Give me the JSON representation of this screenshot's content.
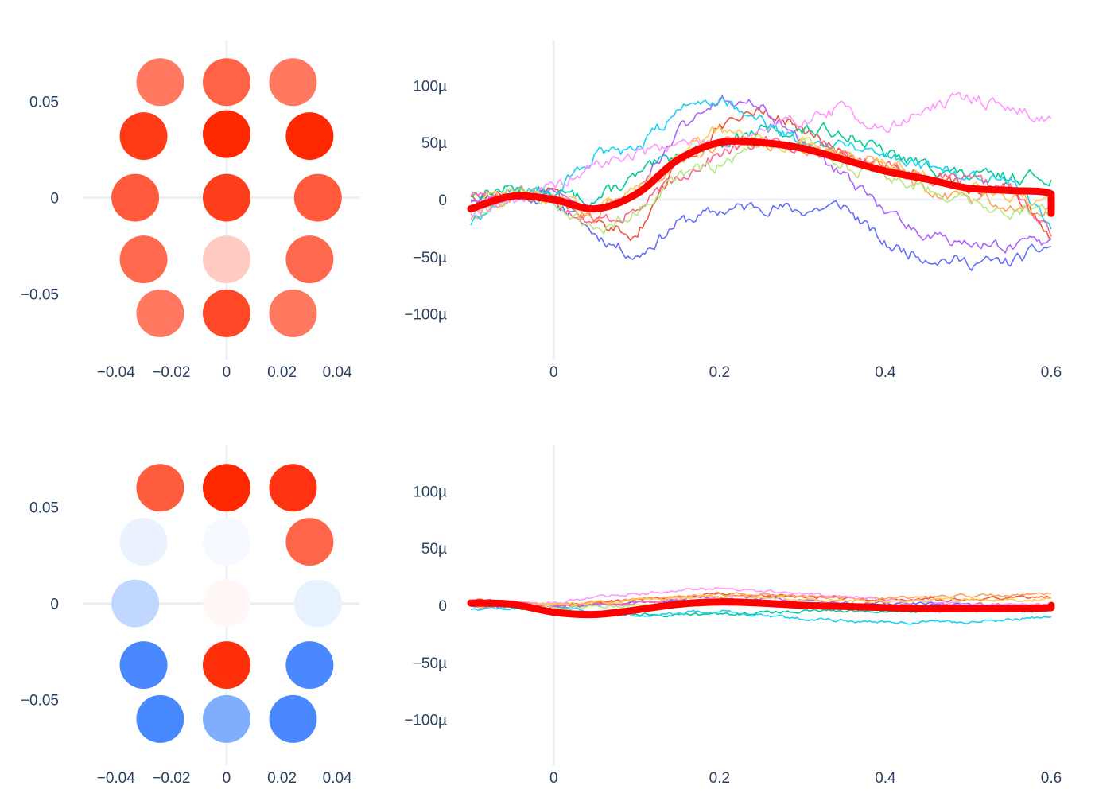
{
  "chart_data": [
    {
      "type": "scatter",
      "panel": "top-left",
      "xlim": [
        -0.052,
        0.048
      ],
      "ylim": [
        -0.084,
        0.082
      ],
      "x_ticks": [
        -0.04,
        -0.02,
        0,
        0.02,
        0.04
      ],
      "x_tick_labels": [
        "−0.04",
        "−0.02",
        "0",
        "0.02",
        "0.04"
      ],
      "y_ticks": [
        0.05,
        0,
        -0.05
      ],
      "y_tick_labels": [
        "0.05",
        "0",
        "−0.05"
      ],
      "grid": "zero lines only",
      "points": [
        {
          "x": -0.024,
          "y": 0.06,
          "color": "#FF785F"
        },
        {
          "x": 0.0,
          "y": 0.06,
          "color": "#FF6245"
        },
        {
          "x": 0.024,
          "y": 0.06,
          "color": "#FF785F"
        },
        {
          "x": -0.03,
          "y": 0.032,
          "color": "#FF3B18"
        },
        {
          "x": 0.0,
          "y": 0.033,
          "color": "#FF2800"
        },
        {
          "x": 0.03,
          "y": 0.032,
          "color": "#FF2800"
        },
        {
          "x": -0.033,
          "y": 0.0,
          "color": "#FF5A3C"
        },
        {
          "x": 0.0,
          "y": 0.0,
          "color": "#FF3F1C"
        },
        {
          "x": 0.033,
          "y": 0.0,
          "color": "#FF5A3C"
        },
        {
          "x": -0.03,
          "y": -0.032,
          "color": "#FF6A4E"
        },
        {
          "x": 0.0,
          "y": -0.032,
          "color": "#FFCBC2"
        },
        {
          "x": 0.03,
          "y": -0.032,
          "color": "#FF6A4E"
        },
        {
          "x": -0.024,
          "y": -0.06,
          "color": "#FF785F"
        },
        {
          "x": 0.0,
          "y": -0.06,
          "color": "#FF4828"
        },
        {
          "x": 0.024,
          "y": -0.06,
          "color": "#FF785F"
        }
      ]
    },
    {
      "type": "line",
      "panel": "top-right",
      "xlim": [
        -0.1,
        0.6
      ],
      "ylim": [
        -0.00014,
        0.00014
      ],
      "x_ticks": [
        0,
        0.2,
        0.4,
        0.6
      ],
      "x_tick_labels": [
        "0",
        "0.2",
        "0.4",
        "0.6"
      ],
      "y_ticks": [
        0.0001,
        5e-05,
        0,
        -5e-05,
        -0.0001
      ],
      "y_tick_labels": [
        "100µ",
        "50µ",
        "0",
        "−50µ",
        "−100µ"
      ],
      "grid": "zero lines only",
      "series": [
        {
          "color": "#636EFA",
          "noise_seed": 11,
          "noise": 4.5e-06,
          "x": [
            -0.1,
            -0.05,
            0.0,
            0.05,
            0.1,
            0.15,
            0.2,
            0.25,
            0.3,
            0.35,
            0.4,
            0.45,
            0.5,
            0.55,
            0.6
          ],
          "values": [
            2e-06,
            5e-06,
            0.0,
            -3e-05,
            -5e-05,
            -2e-05,
            -1e-05,
            -5e-06,
            -1e-05,
            -5e-06,
            -4e-05,
            -5e-05,
            -5.5e-05,
            -5.5e-05,
            -4e-05
          ]
        },
        {
          "color": "#EF553B",
          "noise_seed": 12,
          "noise": 4.5e-06,
          "x": [
            -0.1,
            -0.05,
            0.0,
            0.05,
            0.1,
            0.15,
            0.2,
            0.25,
            0.3,
            0.35,
            0.4,
            0.45,
            0.5,
            0.55,
            0.6
          ],
          "values": [
            5e-06,
            5e-06,
            5e-06,
            -2e-05,
            -3e-05,
            3e-05,
            6e-05,
            8e-05,
            6e-05,
            4e-05,
            3e-05,
            2e-05,
            1e-05,
            1e-05,
            -3.5e-05
          ]
        },
        {
          "color": "#00CC96",
          "noise_seed": 13,
          "noise": 4.5e-06,
          "x": [
            -0.1,
            -0.05,
            0.0,
            0.05,
            0.1,
            0.15,
            0.2,
            0.25,
            0.3,
            0.35,
            0.4,
            0.45,
            0.5,
            0.55,
            0.6
          ],
          "values": [
            5e-06,
            1e-05,
            5e-06,
            0.0,
            2e-05,
            4e-05,
            5e-05,
            6e-05,
            6e-05,
            6e-05,
            4e-05,
            3e-05,
            2e-05,
            2e-05,
            2e-05
          ]
        },
        {
          "color": "#AB63FA",
          "noise_seed": 14,
          "noise": 4.5e-06,
          "x": [
            -0.1,
            -0.05,
            0.0,
            0.05,
            0.1,
            0.15,
            0.2,
            0.25,
            0.3,
            0.35,
            0.4,
            0.45,
            0.5,
            0.55,
            0.6
          ],
          "values": [
            0.0,
            5e-06,
            5e-06,
            -1e-05,
            1e-05,
            6e-05,
            9e-05,
            8e-05,
            5e-05,
            2e-05,
            -1e-05,
            -3e-05,
            -4e-05,
            -4e-05,
            -4e-05
          ]
        },
        {
          "color": "#FFA15A",
          "noise_seed": 15,
          "noise": 4.5e-06,
          "x": [
            -0.1,
            -0.05,
            0.0,
            0.05,
            0.1,
            0.15,
            0.2,
            0.25,
            0.3,
            0.35,
            0.4,
            0.45,
            0.5,
            0.55,
            0.6
          ],
          "values": [
            -1.5e-05,
            5e-06,
            0.0,
            -1.5e-05,
            1e-05,
            3e-05,
            5e-05,
            5e-05,
            4e-05,
            4e-05,
            3e-05,
            1e-05,
            0.0,
            -5e-06,
            -1e-05
          ]
        },
        {
          "color": "#19D3F3",
          "noise_seed": 16,
          "noise": 4.5e-06,
          "x": [
            -0.1,
            -0.05,
            0.0,
            0.05,
            0.1,
            0.15,
            0.2,
            0.25,
            0.3,
            0.35,
            0.4,
            0.45,
            0.5,
            0.55,
            0.6
          ],
          "values": [
            -2e-05,
            1e-05,
            5e-06,
            4e-05,
            4e-05,
            8e-05,
            9e-05,
            7e-05,
            5e-05,
            5e-05,
            4e-05,
            3e-05,
            2e-05,
            2e-05,
            -2e-05
          ]
        },
        {
          "color": "#FF6692",
          "noise_seed": 17,
          "noise": 4.5e-06,
          "x": [
            -0.1,
            -0.05,
            0.0,
            0.05,
            0.1,
            0.15,
            0.2,
            0.25,
            0.3,
            0.35,
            0.4,
            0.45,
            0.5,
            0.55,
            0.6
          ],
          "values": [
            5e-06,
            5e-06,
            0.0,
            -2e-05,
            -1e-05,
            2e-05,
            4e-05,
            5e-05,
            5e-05,
            4e-05,
            3e-05,
            2e-05,
            1.5e-05,
            1e-05,
            -3e-05
          ]
        },
        {
          "color": "#B6E880",
          "noise_seed": 18,
          "noise": 4.5e-06,
          "x": [
            -0.1,
            -0.05,
            0.0,
            0.05,
            0.1,
            0.15,
            0.2,
            0.25,
            0.3,
            0.35,
            0.4,
            0.45,
            0.5,
            0.55,
            0.6
          ],
          "values": [
            -1e-05,
            5e-06,
            0.0,
            -3e-05,
            -1e-05,
            2e-05,
            3e-05,
            5e-05,
            5e-05,
            3e-05,
            2e-05,
            1e-05,
            0.0,
            -1e-05,
            -1e-05
          ]
        },
        {
          "color": "#FF97FF",
          "noise_seed": 19,
          "noise": 4.5e-06,
          "x": [
            -0.1,
            -0.05,
            0.0,
            0.05,
            0.1,
            0.15,
            0.2,
            0.25,
            0.3,
            0.35,
            0.4,
            0.45,
            0.5,
            0.55,
            0.6
          ],
          "values": [
            -1e-05,
            0.0,
            1e-05,
            3e-05,
            4e-05,
            5e-05,
            5e-05,
            6e-05,
            7e-05,
            8e-05,
            6e-05,
            8e-05,
            9e-05,
            8e-05,
            7e-05
          ]
        },
        {
          "color": "#FECB52",
          "noise_seed": 20,
          "noise": 4.5e-06,
          "x": [
            -0.1,
            -0.05,
            0.0,
            0.05,
            0.1,
            0.15,
            0.2,
            0.25,
            0.3,
            0.35,
            0.4,
            0.45,
            0.5,
            0.55,
            0.6
          ],
          "values": [
            -5e-06,
            5e-06,
            0.0,
            -1e-05,
            1e-05,
            4e-05,
            6e-05,
            5e-05,
            5e-05,
            4e-05,
            3e-05,
            2e-05,
            1e-05,
            0.0,
            -5e-06
          ]
        },
        {
          "color": "#FF0000",
          "width": 9,
          "smooth": true,
          "x": [
            -0.1,
            -0.05,
            0.0,
            0.05,
            0.1,
            0.15,
            0.2,
            0.25,
            0.3,
            0.35,
            0.4,
            0.45,
            0.5,
            0.55,
            0.6,
            0.6
          ],
          "values": [
            -8e-06,
            3e-06,
            0.0,
            -8e-06,
            5e-06,
            3.5e-05,
            5e-05,
            5e-05,
            4.5e-05,
            3.5e-05,
            2.5e-05,
            1.8e-05,
            1e-05,
            8e-06,
            5e-06,
            -1.2e-05
          ]
        }
      ]
    },
    {
      "type": "scatter",
      "panel": "bottom-left",
      "xlim": [
        -0.052,
        0.048
      ],
      "ylim": [
        -0.084,
        0.082
      ],
      "x_ticks": [
        -0.04,
        -0.02,
        0,
        0.02,
        0.04
      ],
      "x_tick_labels": [
        "−0.04",
        "−0.02",
        "0",
        "0.02",
        "0.04"
      ],
      "y_ticks": [
        0.05,
        0,
        -0.05
      ],
      "y_tick_labels": [
        "0.05",
        "0",
        "−0.05"
      ],
      "grid": "zero lines only",
      "points": [
        {
          "x": -0.024,
          "y": 0.06,
          "color": "#FF5C3E"
        },
        {
          "x": 0.0,
          "y": 0.06,
          "color": "#FF2800"
        },
        {
          "x": 0.024,
          "y": 0.06,
          "color": "#FF3312"
        },
        {
          "x": -0.03,
          "y": 0.032,
          "color": "#EAF2FF"
        },
        {
          "x": 0.0,
          "y": 0.032,
          "color": "#F6F9FF"
        },
        {
          "x": 0.03,
          "y": 0.032,
          "color": "#FF6549"
        },
        {
          "x": -0.033,
          "y": 0.0,
          "color": "#C0D8FF"
        },
        {
          "x": 0.0,
          "y": 0.0,
          "color": "#FFF8F6"
        },
        {
          "x": 0.033,
          "y": 0.0,
          "color": "#E8F1FF"
        },
        {
          "x": -0.03,
          "y": -0.032,
          "color": "#4A88FF"
        },
        {
          "x": 0.0,
          "y": -0.032,
          "color": "#FF2F0C"
        },
        {
          "x": 0.03,
          "y": -0.032,
          "color": "#4A88FF"
        },
        {
          "x": -0.024,
          "y": -0.06,
          "color": "#4889FF"
        },
        {
          "x": 0.0,
          "y": -0.06,
          "color": "#80AEFF"
        },
        {
          "x": 0.024,
          "y": -0.06,
          "color": "#4A88FF"
        }
      ]
    },
    {
      "type": "line",
      "panel": "bottom-right",
      "xlim": [
        -0.1,
        0.6
      ],
      "ylim": [
        -0.00014,
        0.00014
      ],
      "x_ticks": [
        0,
        0.2,
        0.4,
        0.6
      ],
      "x_tick_labels": [
        "0",
        "0.2",
        "0.4",
        "0.6"
      ],
      "y_ticks": [
        0.0001,
        5e-05,
        0,
        -5e-05,
        -0.0001
      ],
      "y_tick_labels": [
        "100µ",
        "50µ",
        "0",
        "−50µ",
        "−100µ"
      ],
      "grid": "zero lines only",
      "series": [
        {
          "color": "#636EFA",
          "noise_seed": 31,
          "noise": 1.2e-06,
          "x": [
            -0.1,
            0.0,
            0.1,
            0.2,
            0.3,
            0.4,
            0.5,
            0.6
          ],
          "values": [
            2e-06,
            0.0,
            2e-06,
            5e-06,
            2e-06,
            2e-06,
            0.0,
            -2e-06
          ]
        },
        {
          "color": "#EF553B",
          "noise_seed": 32,
          "noise": 1.2e-06,
          "x": [
            -0.1,
            0.0,
            0.1,
            0.2,
            0.3,
            0.4,
            0.5,
            0.6
          ],
          "values": [
            5e-06,
            0.0,
            5e-06,
            1e-05,
            8e-06,
            5e-06,
            5e-06,
            8e-06
          ]
        },
        {
          "color": "#00CC96",
          "noise_seed": 33,
          "noise": 1.2e-06,
          "x": [
            -0.1,
            0.0,
            0.1,
            0.2,
            0.3,
            0.4,
            0.5,
            0.6
          ],
          "values": [
            0.0,
            -5e-06,
            -8e-06,
            -8e-06,
            -5e-06,
            -5e-06,
            -5e-06,
            -5e-06
          ]
        },
        {
          "color": "#AB63FA",
          "noise_seed": 34,
          "noise": 1.2e-06,
          "x": [
            -0.1,
            0.0,
            0.1,
            0.2,
            0.3,
            0.4,
            0.5,
            0.6
          ],
          "values": [
            0.0,
            -2e-06,
            2e-06,
            8e-06,
            4e-06,
            0.0,
            0.0,
            -2e-06
          ]
        },
        {
          "color": "#FFA15A",
          "noise_seed": 35,
          "noise": 1.2e-06,
          "x": [
            -0.1,
            0.0,
            0.1,
            0.2,
            0.3,
            0.4,
            0.5,
            0.6
          ],
          "values": [
            2e-06,
            0.0,
            5e-06,
            1e-05,
            8e-06,
            6e-06,
            8e-06,
            1e-05
          ]
        },
        {
          "color": "#19D3F3",
          "noise_seed": 36,
          "noise": 1.2e-06,
          "x": [
            -0.1,
            0.0,
            0.1,
            0.2,
            0.3,
            0.4,
            0.5,
            0.6
          ],
          "values": [
            -3e-06,
            -2e-06,
            -8e-06,
            -5e-06,
            -1.2e-05,
            -1.5e-05,
            -1.5e-05,
            -1e-05
          ]
        },
        {
          "color": "#FF6692",
          "noise_seed": 37,
          "noise": 1.2e-06,
          "x": [
            -0.1,
            0.0,
            0.1,
            0.2,
            0.3,
            0.4,
            0.5,
            0.6
          ],
          "values": [
            0.0,
            0.0,
            2e-06,
            4e-06,
            2e-06,
            0.0,
            0.0,
            0.0
          ]
        },
        {
          "color": "#B6E880",
          "noise_seed": 38,
          "noise": 1.2e-06,
          "x": [
            -0.1,
            0.0,
            0.1,
            0.2,
            0.3,
            0.4,
            0.5,
            0.6
          ],
          "values": [
            0.0,
            -2e-06,
            0.0,
            2e-06,
            0.0,
            -2e-06,
            -3e-06,
            -3e-06
          ]
        },
        {
          "color": "#FF97FF",
          "noise_seed": 39,
          "noise": 1.2e-06,
          "x": [
            -0.1,
            0.0,
            0.1,
            0.2,
            0.3,
            0.4,
            0.5,
            0.6
          ],
          "values": [
            2e-06,
            3e-06,
            1e-05,
            1.5e-05,
            1e-05,
            5e-06,
            2e-06,
            0.0
          ]
        },
        {
          "color": "#FECB52",
          "noise_seed": 40,
          "noise": 1.2e-06,
          "x": [
            -0.1,
            0.0,
            0.1,
            0.2,
            0.3,
            0.4,
            0.5,
            0.6
          ],
          "values": [
            0.0,
            0.0,
            5e-06,
            8e-06,
            5e-06,
            3e-06,
            5e-06,
            5e-06
          ]
        },
        {
          "color": "#FF0000",
          "width": 9,
          "smooth": true,
          "x": [
            -0.1,
            -0.05,
            0.0,
            0.05,
            0.1,
            0.15,
            0.2,
            0.25,
            0.3,
            0.35,
            0.4,
            0.45,
            0.5,
            0.55,
            0.6,
            0.6
          ],
          "values": [
            2e-06,
            1e-06,
            -6e-06,
            -8e-06,
            -4e-06,
            1e-06,
            3e-06,
            2e-06,
            0.0,
            -1e-06,
            -2e-06,
            -3e-06,
            -3e-06,
            -3e-06,
            -2e-06,
            0.0
          ]
        }
      ]
    }
  ]
}
